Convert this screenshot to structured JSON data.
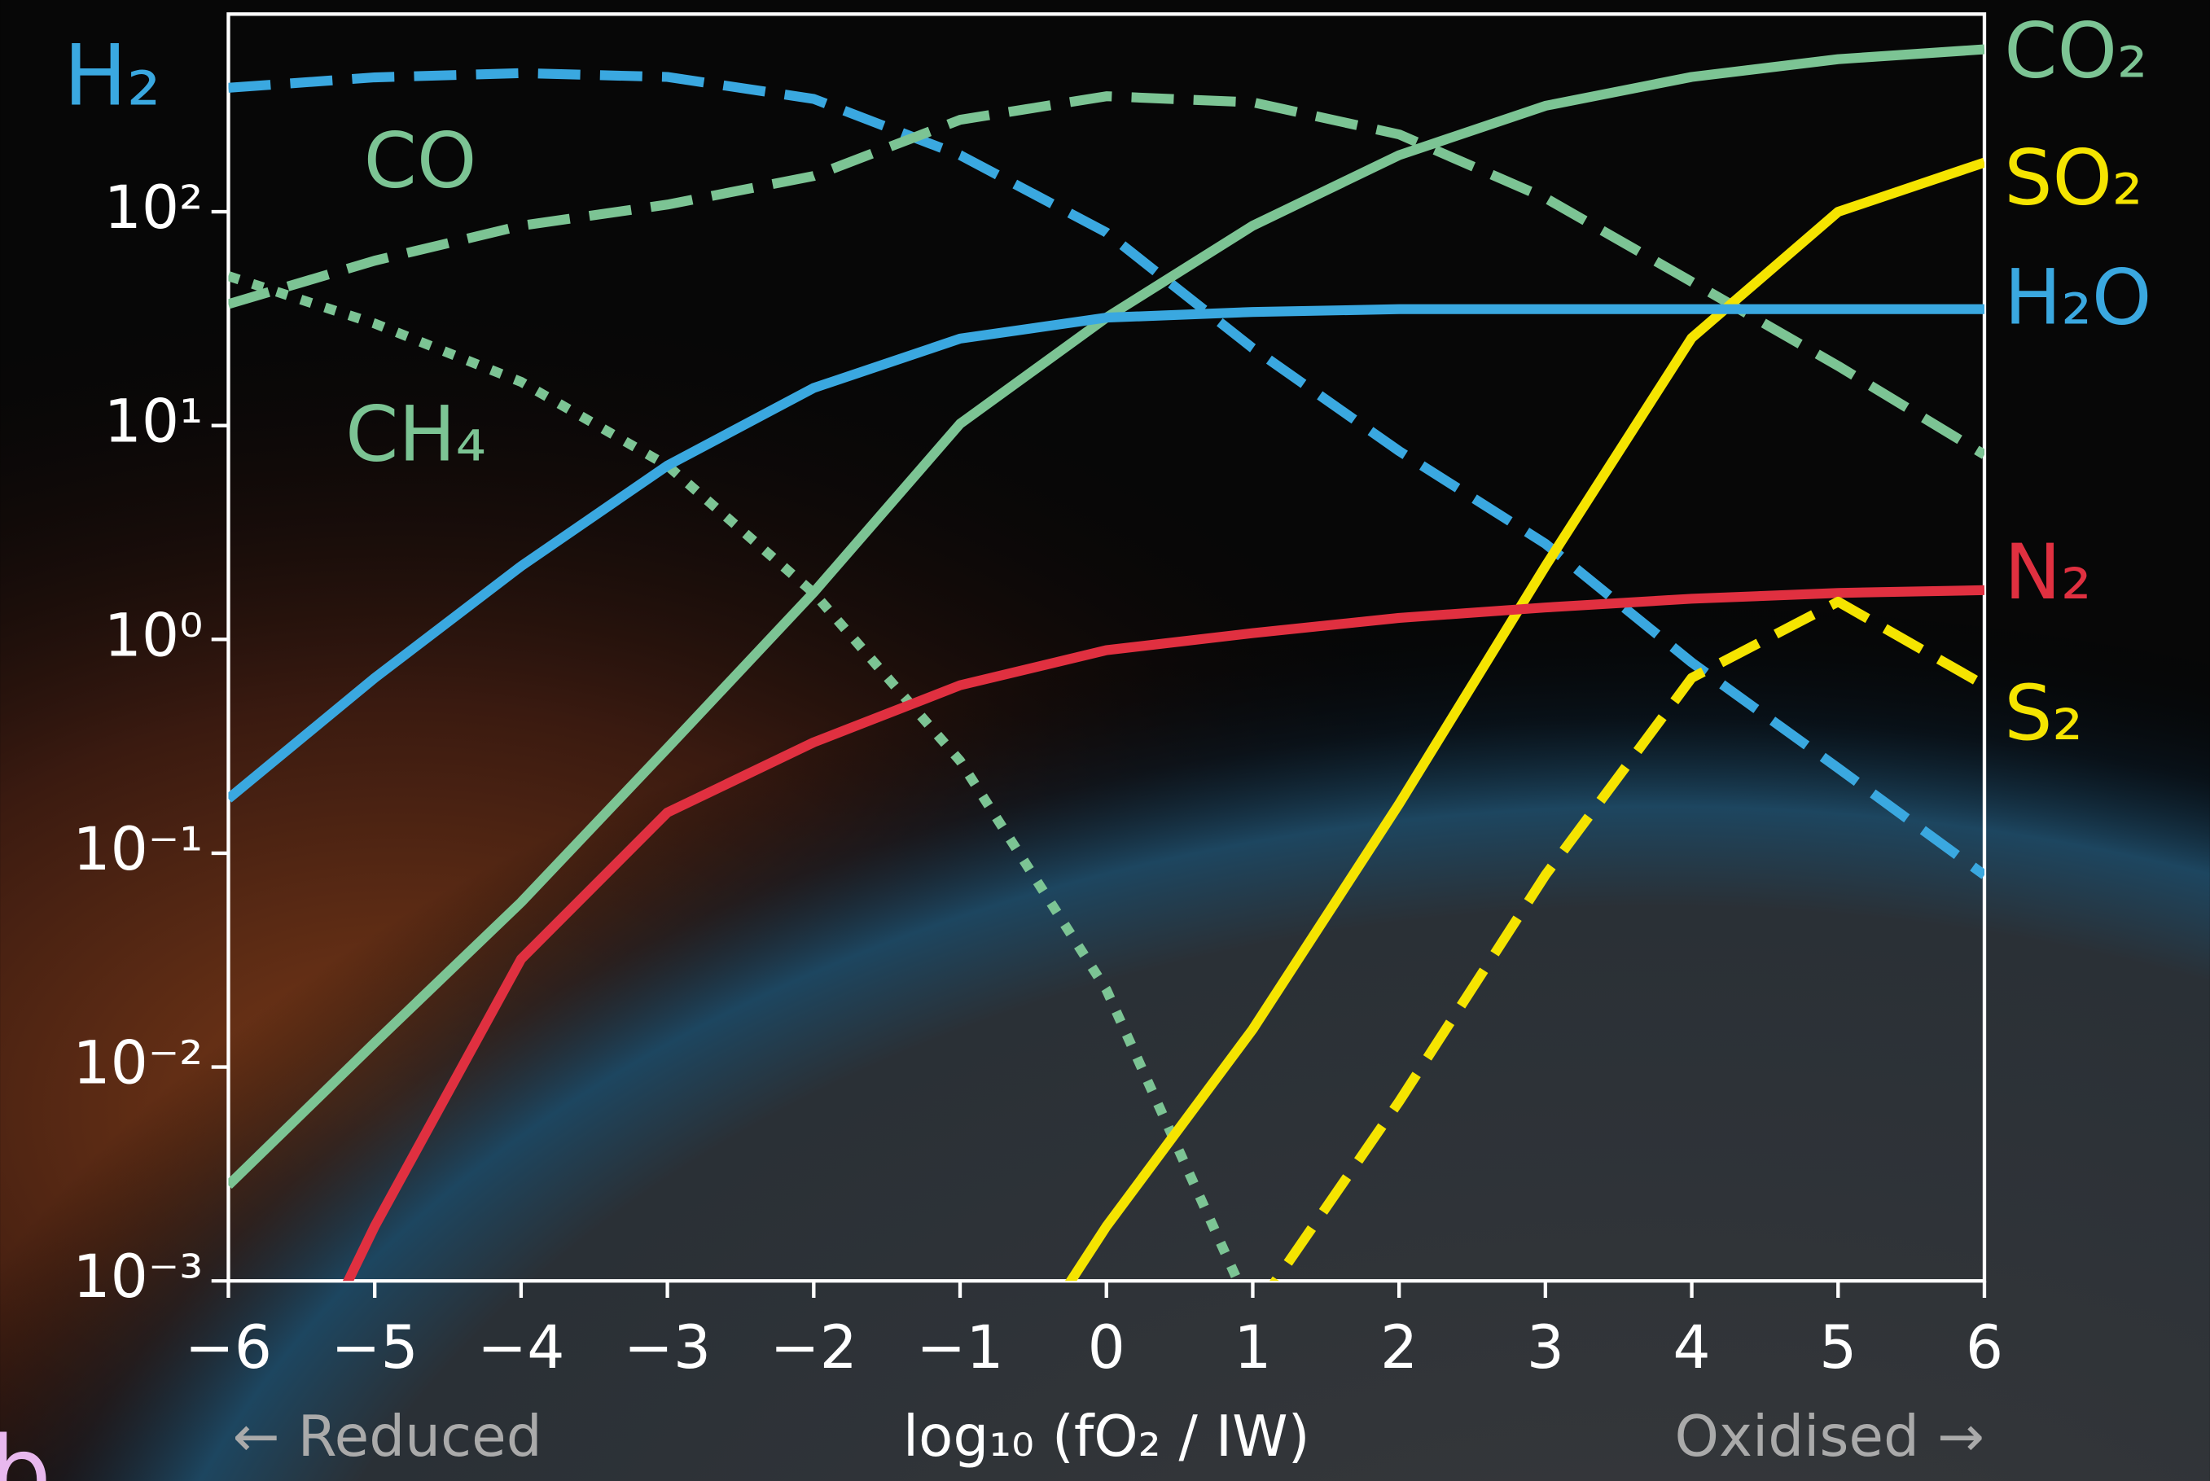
{
  "chart_data": {
    "type": "line",
    "xlabel": "log₁₀ (fO₂ / IW)",
    "annotations": [
      "← Reduced",
      "Oxidised →",
      "b"
    ],
    "x": [
      -6,
      -5,
      -4,
      -3,
      -2,
      -1,
      0,
      1,
      2,
      3,
      4,
      5,
      6
    ],
    "xlim": [
      -6,
      6
    ],
    "xticks": [
      {
        "value": -6,
        "label": "−6"
      },
      {
        "value": -5,
        "label": "−5"
      },
      {
        "value": -4,
        "label": "−4"
      },
      {
        "value": -3,
        "label": "−3"
      },
      {
        "value": -2,
        "label": "−2"
      },
      {
        "value": -1,
        "label": "−1"
      },
      0,
      1,
      2,
      3,
      4,
      5,
      6
    ],
    "ylim": [
      0.001,
      840
    ],
    "yscale": "log",
    "yticks": [
      {
        "value": 0.001,
        "label": "10⁻³"
      },
      {
        "value": 0.01,
        "label": "10⁻²"
      },
      {
        "value": 0.1,
        "label": "10⁻¹"
      },
      {
        "value": 1,
        "label": "10⁰"
      },
      {
        "value": 10,
        "label": "10¹"
      },
      {
        "value": 100,
        "label": "10²"
      }
    ],
    "series": [
      {
        "name": "H₂",
        "color": "#3aa8e0",
        "style": "dashed",
        "values": [
          380,
          425,
          445,
          427,
          337,
          184,
          80,
          23,
          7.6,
          2.8,
          0.78,
          0.25,
          0.079
        ]
      },
      {
        "name": "CO",
        "color": "#7cc494",
        "style": "dashed",
        "values": [
          37,
          59,
          86,
          108,
          147,
          269,
          347,
          325,
          230,
          116,
          47,
          19,
          7.3
        ]
      },
      {
        "name": "CH₄",
        "color": "#7cc494",
        "style": "dotted",
        "values": [
          50,
          30,
          16,
          6.5,
          1.65,
          0.27,
          0.023,
          0.0007,
          null,
          null,
          null,
          null,
          null
        ]
      },
      {
        "name": "CO₂",
        "color": "#7cc494",
        "style": "solid",
        "values": [
          0.0028,
          0.013,
          0.059,
          0.31,
          1.66,
          10.2,
          32,
          86,
          184,
          313,
          427,
          517,
          575
        ]
      },
      {
        "name": "SO₂",
        "color": "#f5e400",
        "style": "solid",
        "values": [
          null,
          null,
          null,
          null,
          null,
          0.00016,
          0.0018,
          0.015,
          0.17,
          2.2,
          25.7,
          100,
          170
        ]
      },
      {
        "name": "H₂O",
        "color": "#3aa8e0",
        "style": "solid",
        "values": [
          0.18,
          0.66,
          2.2,
          6.5,
          15,
          25.5,
          32,
          34,
          35,
          35,
          35,
          35,
          35
        ]
      },
      {
        "name": "N₂",
        "color": "#e03040",
        "style": "solid",
        "values": [
          7e-05,
          0.0018,
          0.032,
          0.155,
          0.33,
          0.61,
          0.89,
          1.07,
          1.26,
          1.41,
          1.55,
          1.65,
          1.7
        ]
      },
      {
        "name": "S₂",
        "color": "#f5e400",
        "style": "dashed",
        "values": [
          null,
          null,
          null,
          null,
          null,
          null,
          null,
          0.0007,
          0.0069,
          0.079,
          0.66,
          1.5,
          0.61
        ]
      }
    ]
  }
}
